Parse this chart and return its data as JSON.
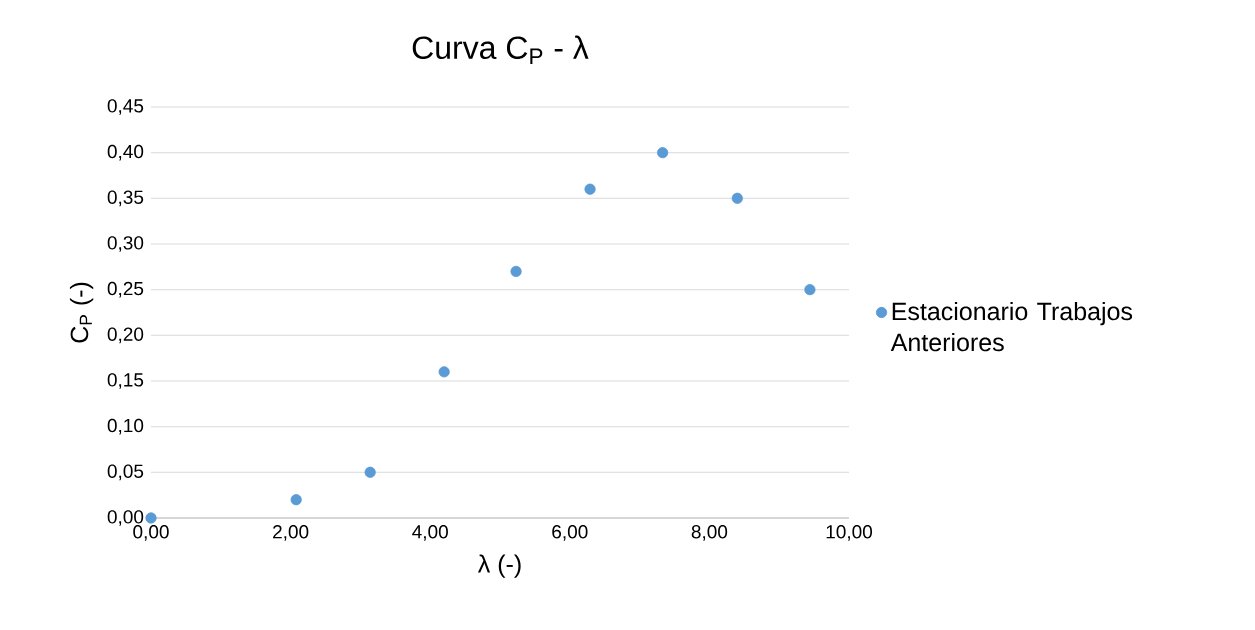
{
  "chart_data": {
    "type": "scatter",
    "title": "Curva C$_{P}$ - λ",
    "xlabel": "λ (-)",
    "ylabel": "C$_{P}$ (-)",
    "x": [
      0,
      2.08,
      3.14,
      4.2,
      5.23,
      6.29,
      7.33,
      8.4,
      9.44
    ],
    "series": [
      {
        "name": "Estacionario Trabajos Anteriores",
        "color": "#5b9bd5",
        "values": [
          0,
          0.02,
          0.05,
          0.16,
          0.27,
          0.36,
          0.4,
          0.35,
          0.25
        ]
      }
    ],
    "xlim": [
      0,
      10
    ],
    "ylim": [
      0,
      0.45
    ],
    "xticks": [
      {
        "value": 0,
        "label": "0,00"
      },
      {
        "value": 2,
        "label": "2,00"
      },
      {
        "value": 4,
        "label": "4,00"
      },
      {
        "value": 6,
        "label": "6,00"
      },
      {
        "value": 8,
        "label": "8,00"
      },
      {
        "value": 10,
        "label": "10,00"
      }
    ],
    "yticks": [
      {
        "value": 0,
        "label": "0,00"
      },
      {
        "value": 0.05,
        "label": "0,05"
      },
      {
        "value": 0.1,
        "label": "0,10"
      },
      {
        "value": 0.15,
        "label": "0,15"
      },
      {
        "value": 0.2,
        "label": "0,20"
      },
      {
        "value": 0.25,
        "label": "0,25"
      },
      {
        "value": 0.3,
        "label": "0,30"
      },
      {
        "value": 0.35,
        "label": "0,35"
      },
      {
        "value": 0.4,
        "label": "0,40"
      },
      {
        "value": 0.45,
        "label": "0,45"
      }
    ],
    "grid": "y",
    "legend": "right",
    "marker": "circle"
  }
}
